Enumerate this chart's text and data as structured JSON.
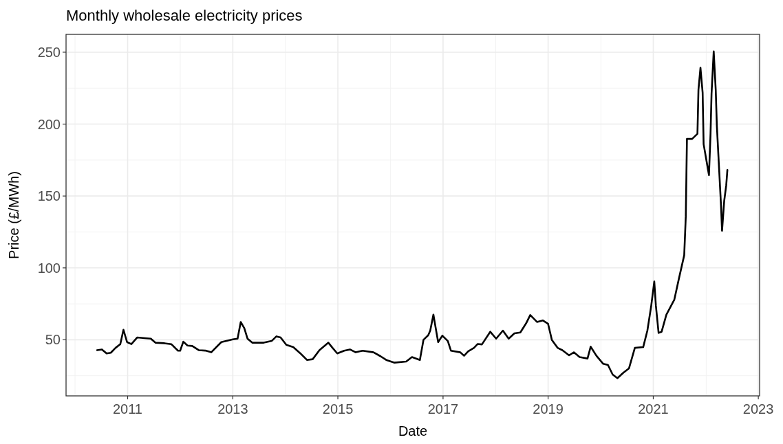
{
  "chart_data": {
    "type": "line",
    "title": "Monthly wholesale electricity prices",
    "xlabel": "Date",
    "ylabel": "Price (£/MWh)",
    "xlim": [
      "2009-10-30",
      "2023-01-10"
    ],
    "xticks": [
      "2011",
      "2013",
      "2015",
      "2017",
      "2019",
      "2021",
      "2023"
    ],
    "ylim": [
      11,
      262.4
    ],
    "yticks": [
      50,
      100,
      150,
      200,
      250
    ],
    "grid": true,
    "series": [
      {
        "color": "#000000",
        "x": [
          "2010-06-03",
          "2010-07-06",
          "2010-08-08",
          "2010-09-06",
          "2010-10-09",
          "2010-11-11",
          "2010-12-03",
          "2010-12-28",
          "2011-01-27",
          "2011-03-08",
          "2011-06-11",
          "2011-07-13",
          "2011-09-14",
          "2011-10-31",
          "2011-12-17",
          "2012-01-01",
          "2012-01-23",
          "2012-02-21",
          "2012-03-25",
          "2012-05-09",
          "2012-06-25",
          "2012-08-04",
          "2012-10-13",
          "2013-01-01",
          "2013-02-03",
          "2013-02-25",
          "2013-03-22",
          "2013-04-13",
          "2013-05-16",
          "2013-08-04",
          "2013-09-28",
          "2013-10-31",
          "2013-11-29",
          "2014-01-08",
          "2014-02-25",
          "2014-04-13",
          "2014-05-31",
          "2014-07-10",
          "2014-08-26",
          "2014-10-27",
          "2014-11-25",
          "2014-12-28",
          "2015-02-14",
          "2015-03-26",
          "2015-05-05",
          "2015-06-22",
          "2015-09-06",
          "2015-10-24",
          "2015-12-03",
          "2016-01-30",
          "2016-04-20",
          "2016-05-30",
          "2016-07-24",
          "2016-08-18",
          "2016-09-20",
          "2016-10-04",
          "2016-10-26",
          "2016-11-14",
          "2016-11-28",
          "2016-12-27",
          "2017-02-03",
          "2017-02-25",
          "2017-05-01",
          "2017-05-27",
          "2017-06-25",
          "2017-08-04",
          "2017-08-30",
          "2017-09-28",
          "2017-11-25",
          "2018-01-05",
          "2018-02-21",
          "2018-04-02",
          "2018-05-12",
          "2018-06-22",
          "2018-08-01",
          "2018-08-30",
          "2018-10-16",
          "2018-11-25",
          "2019-01-01",
          "2019-01-27",
          "2019-03-08",
          "2019-04-10",
          "2019-05-27",
          "2019-06-29",
          "2019-08-08",
          "2019-10-02",
          "2019-10-24",
          "2019-12-03",
          "2020-01-19",
          "2020-02-21",
          "2020-03-25",
          "2020-04-27",
          "2020-06-06",
          "2020-07-16",
          "2020-08-26",
          "2020-10-23",
          "2020-11-21",
          "2020-12-17",
          "2021-01-08",
          "2021-01-19",
          "2021-02-07",
          "2021-02-28",
          "2021-04-02",
          "2021-05-27",
          "2021-06-29",
          "2021-08-04",
          "2021-08-15",
          "2021-08-19",
          "2021-08-23",
          "2021-09-28",
          "2021-11-04",
          "2021-11-11",
          "2021-11-25",
          "2021-12-10",
          "2021-12-17",
          "2022-01-23",
          "2022-02-03",
          "2022-02-10",
          "2022-02-25",
          "2022-03-11",
          "2022-03-19",
          "2022-04-02",
          "2022-04-17",
          "2022-04-24",
          "2022-05-09",
          "2022-05-23",
          "2022-05-31"
        ],
        "values": [
          42.8,
          43.3,
          40.5,
          41,
          44.4,
          47,
          57,
          48.4,
          47,
          51.6,
          50.8,
          48,
          47.6,
          47,
          42.4,
          42.4,
          48.7,
          46,
          45.7,
          42.8,
          42.5,
          41.3,
          48.4,
          50.3,
          50.8,
          62.4,
          58,
          50.8,
          48,
          48,
          49.2,
          52.4,
          51.6,
          46.5,
          44.9,
          40.8,
          36,
          36.5,
          42.8,
          48,
          44.4,
          40.5,
          42.4,
          43.3,
          41.3,
          42.4,
          41.3,
          38.6,
          36,
          34.1,
          34.9,
          38,
          36,
          50,
          53.2,
          56.4,
          67.5,
          56.4,
          48.4,
          52.9,
          49.2,
          42.4,
          41.3,
          38.9,
          42,
          44.4,
          47.1,
          46.8,
          55.6,
          50.8,
          56.4,
          50.8,
          54.5,
          55.1,
          61.4,
          67.2,
          62.4,
          63.5,
          61.1,
          50,
          44.4,
          42.8,
          39.2,
          41.3,
          38,
          37,
          45.2,
          38.9,
          33.3,
          32.5,
          25.8,
          23.3,
          27,
          30.1,
          44.4,
          44.9,
          56.4,
          73.1,
          90.5,
          73.9,
          54.8,
          55.6,
          67.5,
          77.8,
          92.9,
          108.8,
          135.8,
          162.7,
          189.7,
          189.7,
          193.3,
          223.9,
          239.2,
          222,
          186,
          164.5,
          193.3,
          221.2,
          250.5,
          223.9,
          198.7,
          171.7,
          143,
          125.9,
          146.6,
          157.4,
          168.1
        ]
      }
    ]
  }
}
